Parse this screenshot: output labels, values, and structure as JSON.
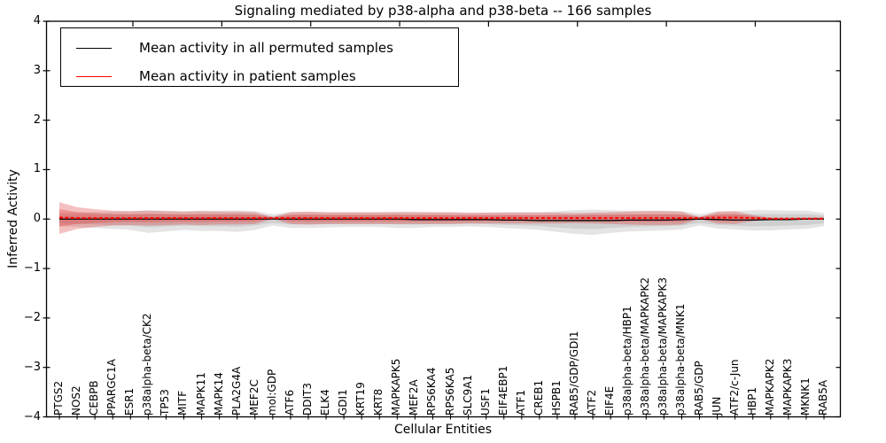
{
  "figure": {
    "title": "Signaling mediated by p38-alpha and p38-beta -- 166 samples",
    "background": "#ffffff"
  },
  "legend": {
    "items": [
      {
        "label": "Mean activity in all permuted samples",
        "color": "#000000"
      },
      {
        "label": "Mean activity in patient samples",
        "color": "#ff0000"
      }
    ],
    "position": "upper left"
  },
  "chart_data": {
    "type": "line",
    "title": "Signaling mediated by p38-alpha and p38-beta -- 166 samples",
    "xlabel": "Cellular Entities",
    "ylabel": "Inferred Activity",
    "ylim": [
      -4,
      4
    ],
    "ytick_values": [
      4,
      3,
      2,
      1,
      0,
      -1,
      -2,
      -3,
      -4
    ],
    "ytick_labels": [
      "4",
      "3",
      "2",
      "1",
      "0",
      "−1",
      "−2",
      "−3",
      "−4"
    ],
    "grid": false,
    "legend_position": "upper left",
    "categories": [
      "PTGS2",
      "NOS2",
      "CEBPB",
      "PPARGC1A",
      "ESR1",
      "p38alpha-beta/CK2",
      "TP53",
      "MITF",
      "MAPK11",
      "MAPK14",
      "PLA2G4A",
      "MEF2C",
      "mol:GDP",
      "ATF6",
      "DDIT3",
      "ELK4",
      "GDI1",
      "KRT19",
      "KRT8",
      "MAPKAPK5",
      "MEF2A",
      "RPS6KA4",
      "RPS6KA5",
      "SLC9A1",
      "USF1",
      "EIF4EBP1",
      "ATF1",
      "CREB1",
      "HSPB1",
      "RAB5/GDP/GDI1",
      "ATF2",
      "EIF4E",
      "p38alpha-beta/HBP1",
      "p38alpha-beta/MAPKAPK2",
      "p38alpha-beta/MAPKAPK3",
      "p38alpha-beta/MNK1",
      "RAB5/GDP",
      "JUN",
      "ATF2/c-Jun",
      "HBP1",
      "MAPKAPK2",
      "MAPKAPK3",
      "MKNK1",
      "RAB5A"
    ],
    "series": [
      {
        "name": "Mean activity in all permuted samples",
        "line_color": "#000000",
        "band_color": "rgba(130,130,130,0.22)",
        "mean": [
          0,
          0,
          0,
          0,
          0,
          0,
          0,
          0,
          0,
          0,
          0,
          0,
          0,
          0,
          0,
          0,
          0,
          0,
          0,
          0,
          -0.01,
          -0.01,
          -0.01,
          -0.01,
          -0.01,
          -0.02,
          -0.02,
          -0.03,
          -0.03,
          -0.03,
          -0.03,
          -0.03,
          -0.02,
          -0.02,
          -0.02,
          -0.01,
          0,
          -0.01,
          -0.02,
          -0.02,
          -0.01,
          -0.01,
          0,
          0
        ],
        "band_upper": [
          0.12,
          0.13,
          0.14,
          0.15,
          0.16,
          0.18,
          0.17,
          0.16,
          0.17,
          0.17,
          0.18,
          0.16,
          0.1,
          0.14,
          0.14,
          0.13,
          0.13,
          0.13,
          0.13,
          0.14,
          0.14,
          0.13,
          0.13,
          0.12,
          0.13,
          0.14,
          0.14,
          0.14,
          0.16,
          0.18,
          0.19,
          0.18,
          0.17,
          0.17,
          0.17,
          0.16,
          0.1,
          0.15,
          0.16,
          0.18,
          0.18,
          0.17,
          0.17,
          0.12
        ],
        "band_lower": [
          -0.14,
          -0.16,
          -0.18,
          -0.2,
          -0.22,
          -0.28,
          -0.25,
          -0.22,
          -0.24,
          -0.24,
          -0.26,
          -0.22,
          -0.13,
          -0.18,
          -0.18,
          -0.17,
          -0.16,
          -0.16,
          -0.16,
          -0.18,
          -0.18,
          -0.16,
          -0.16,
          -0.15,
          -0.16,
          -0.18,
          -0.2,
          -0.22,
          -0.26,
          -0.3,
          -0.32,
          -0.28,
          -0.25,
          -0.24,
          -0.23,
          -0.21,
          -0.13,
          -0.19,
          -0.21,
          -0.23,
          -0.23,
          -0.21,
          -0.2,
          -0.14
        ]
      },
      {
        "name": "Mean activity in patient samples",
        "line_color": "#ff0000",
        "band_color": "rgba(222,45,45,0.30)",
        "mean": [
          0.03,
          0.02,
          0.02,
          0.02,
          0.02,
          0.02,
          0.02,
          0.02,
          0.02,
          0.02,
          0.02,
          0.02,
          0.02,
          0.02,
          0.02,
          0.02,
          0.02,
          0.02,
          0.02,
          0.02,
          0.02,
          0.02,
          0.02,
          0.02,
          0.02,
          0.02,
          0.02,
          0.02,
          0.02,
          0.02,
          0.02,
          0.02,
          0.02,
          0.02,
          0.02,
          0.02,
          0.02,
          0.03,
          0.03,
          0.02,
          0.01,
          0.01,
          0.01,
          0.01
        ],
        "band_upper": [
          0.34,
          0.24,
          0.2,
          0.17,
          0.16,
          0.17,
          0.16,
          0.15,
          0.16,
          0.15,
          0.15,
          0.14,
          0.04,
          0.14,
          0.15,
          0.14,
          0.14,
          0.14,
          0.14,
          0.14,
          0.14,
          0.14,
          0.14,
          0.13,
          0.13,
          0.13,
          0.13,
          0.13,
          0.13,
          0.12,
          0.13,
          0.14,
          0.15,
          0.16,
          0.16,
          0.15,
          0.04,
          0.15,
          0.16,
          0.08,
          0.03,
          0.03,
          0.03,
          0.03
        ],
        "band_lower": [
          -0.3,
          -0.2,
          -0.16,
          -0.13,
          -0.12,
          -0.13,
          -0.12,
          -0.11,
          -0.12,
          -0.11,
          -0.11,
          -0.1,
          0.0,
          -0.1,
          -0.11,
          -0.1,
          -0.1,
          -0.1,
          -0.1,
          -0.1,
          -0.1,
          -0.1,
          -0.1,
          -0.09,
          -0.09,
          -0.09,
          -0.09,
          -0.09,
          -0.09,
          -0.08,
          -0.09,
          -0.1,
          -0.11,
          -0.12,
          -0.12,
          -0.11,
          0.0,
          -0.09,
          -0.1,
          -0.04,
          -0.01,
          -0.01,
          -0.01,
          -0.01
        ]
      }
    ]
  }
}
